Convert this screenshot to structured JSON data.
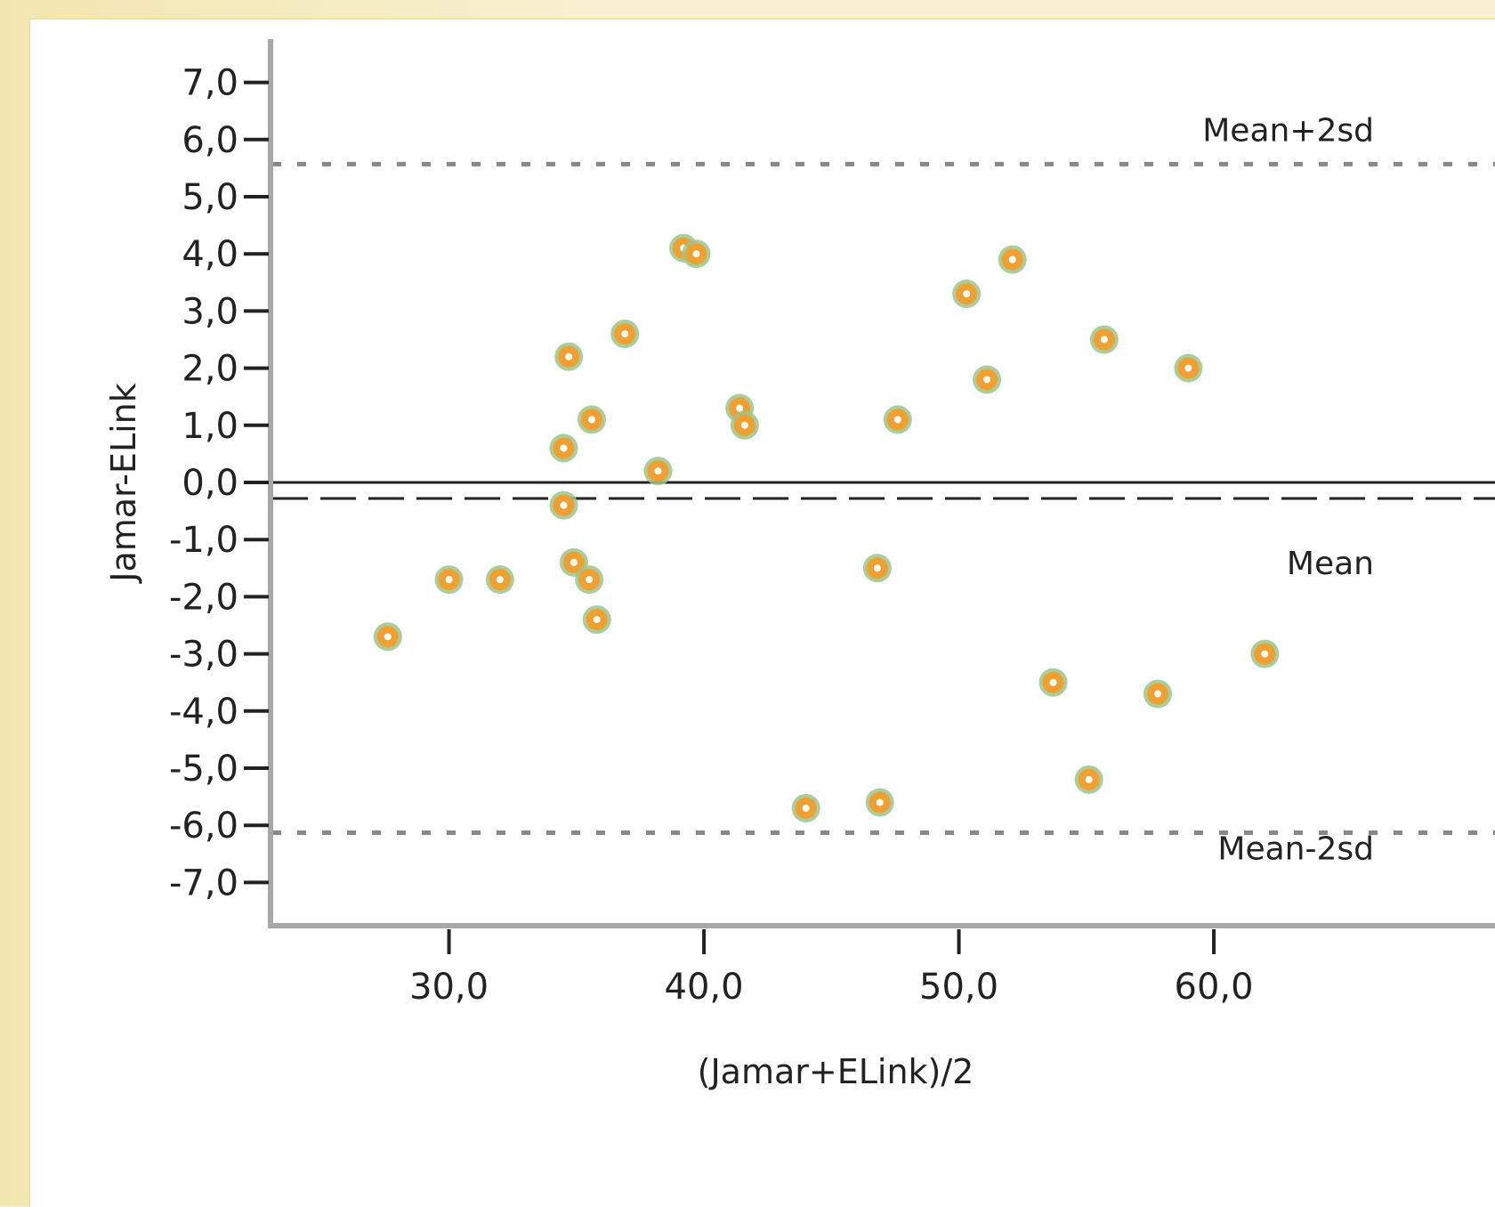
{
  "chart_data": {
    "type": "scatter",
    "xlabel": "(Jamar+ELink)/2",
    "ylabel": "Jamar-ELink",
    "xlim": [
      23.0,
      77.0
    ],
    "ylim": [
      -7.7,
      7.8
    ],
    "x_ticks": [
      "30,0",
      "40,0",
      "50,0",
      "60,0"
    ],
    "x_tick_values": [
      30,
      40,
      50,
      60
    ],
    "y_ticks": [
      "7,0",
      "6,0",
      "5,0",
      "4,0",
      "3,0",
      "2,0",
      "1,0",
      "0,0",
      "-1,0",
      "-2,0",
      "-3,0",
      "-4,0",
      "-5,0",
      "-6,0",
      "-7,0"
    ],
    "y_tick_values": [
      7,
      6,
      5,
      4,
      3,
      2,
      1,
      0,
      -1,
      -2,
      -3,
      -4,
      -5,
      -6,
      -7
    ],
    "reference_lines": [
      {
        "label": "Mean+2sd",
        "y": 5.57,
        "style": "dotted"
      },
      {
        "label": "",
        "y": 0.0,
        "style": "solid"
      },
      {
        "label": "Mean",
        "y": -0.28,
        "style": "dashed"
      },
      {
        "label": "Mean-2sd",
        "y": -6.13,
        "style": "dotted"
      }
    ],
    "marker_color": "#f0a030",
    "marker_outline": "#9cc48a",
    "points": [
      {
        "x": 27.6,
        "y": -2.7
      },
      {
        "x": 30.0,
        "y": -1.7
      },
      {
        "x": 32.0,
        "y": -1.7
      },
      {
        "x": 34.7,
        "y": 2.2
      },
      {
        "x": 34.5,
        "y": 0.6
      },
      {
        "x": 34.5,
        "y": -0.4
      },
      {
        "x": 34.9,
        "y": -1.4
      },
      {
        "x": 35.5,
        "y": -1.7
      },
      {
        "x": 35.6,
        "y": 1.1
      },
      {
        "x": 35.8,
        "y": -2.4
      },
      {
        "x": 36.9,
        "y": 2.6
      },
      {
        "x": 38.2,
        "y": 0.2
      },
      {
        "x": 39.2,
        "y": 4.1
      },
      {
        "x": 39.7,
        "y": 4.0
      },
      {
        "x": 41.4,
        "y": 1.3
      },
      {
        "x": 41.6,
        "y": 1.0
      },
      {
        "x": 44.0,
        "y": -5.7
      },
      {
        "x": 46.8,
        "y": -1.5
      },
      {
        "x": 46.9,
        "y": -5.6
      },
      {
        "x": 47.6,
        "y": 1.1
      },
      {
        "x": 50.3,
        "y": 3.3
      },
      {
        "x": 51.1,
        "y": 1.8
      },
      {
        "x": 52.1,
        "y": 3.9
      },
      {
        "x": 53.7,
        "y": -3.5
      },
      {
        "x": 55.1,
        "y": -5.2
      },
      {
        "x": 55.7,
        "y": 2.5
      },
      {
        "x": 57.8,
        "y": -3.7
      },
      {
        "x": 59.0,
        "y": 2.0
      },
      {
        "x": 62.0,
        "y": -3.0
      }
    ]
  }
}
